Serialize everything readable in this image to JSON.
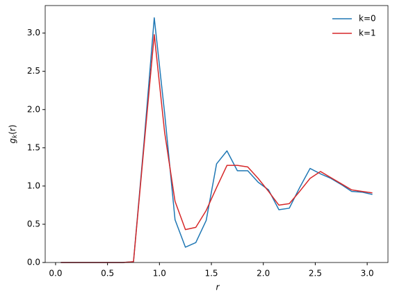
{
  "chart_data": {
    "type": "line",
    "xlabel": "r",
    "ylabel": [
      "g",
      "k",
      "(r)"
    ],
    "x": [
      0.05,
      0.15,
      0.25,
      0.35,
      0.45,
      0.55,
      0.65,
      0.75,
      0.85,
      0.95,
      1.05,
      1.15,
      1.25,
      1.35,
      1.45,
      1.55,
      1.65,
      1.75,
      1.85,
      1.95,
      2.05,
      2.15,
      2.25,
      2.35,
      2.45,
      2.55,
      2.65,
      2.75,
      2.85,
      2.95,
      3.05
    ],
    "series": [
      {
        "name": "k=0",
        "color": "#1f77b4",
        "values": [
          0,
          0,
          0,
          0,
          0,
          0,
          0,
          0.01,
          1.55,
          3.2,
          1.95,
          0.56,
          0.2,
          0.26,
          0.55,
          1.29,
          1.46,
          1.2,
          1.2,
          1.05,
          0.95,
          0.69,
          0.71,
          0.98,
          1.23,
          1.16,
          1.1,
          1.02,
          0.93,
          0.92,
          0.89
        ]
      },
      {
        "name": "k=1",
        "color": "#d62728",
        "values": [
          0,
          0,
          0,
          0,
          0,
          0,
          0,
          0.01,
          1.5,
          2.98,
          1.7,
          0.8,
          0.43,
          0.46,
          0.68,
          0.98,
          1.27,
          1.27,
          1.25,
          1.1,
          0.93,
          0.75,
          0.77,
          0.93,
          1.1,
          1.19,
          1.11,
          1.03,
          0.95,
          0.93,
          0.91
        ]
      }
    ],
    "xlim": [
      -0.1,
      3.2
    ],
    "xticks": [
      {
        "value": 0,
        "label": "0.0"
      },
      0.5,
      {
        "value": 1,
        "label": "1.0"
      },
      1.5,
      {
        "value": 2,
        "label": "2.0"
      },
      2.5,
      {
        "value": 3,
        "label": "3.0"
      }
    ],
    "ylim": [
      0,
      3.36
    ],
    "yticks": [
      {
        "value": 0,
        "label": "0.0"
      },
      0.5,
      {
        "value": 1,
        "label": "1.0"
      },
      1.5,
      {
        "value": 2,
        "label": "2.0"
      },
      2.5,
      {
        "value": 3,
        "label": "3.0"
      }
    ],
    "legend": "upper right"
  }
}
